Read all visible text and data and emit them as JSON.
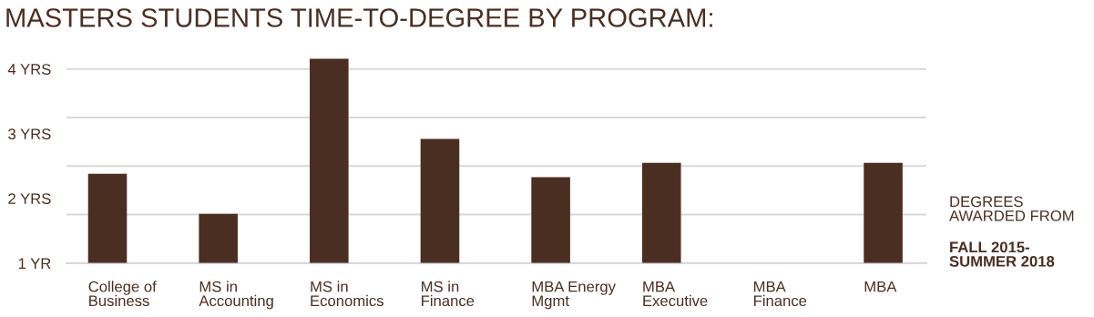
{
  "chart_data": {
    "type": "bar",
    "title": "MASTERS STUDENTS TIME-TO-DEGREE BY PROGRAM:",
    "categories": [
      "College of\nBusiness",
      "MS in\nAccounting",
      "MS in\nEconomics",
      "MS in\nFinance",
      "MBA Energy\nMgmt",
      "MBA\nExecutive",
      "MBA\nFinance",
      "MBA"
    ],
    "values": [
      2.38,
      1.76,
      4.16,
      2.92,
      2.33,
      2.55,
      null,
      2.55
    ],
    "color": "#4a2e22",
    "ylim": [
      1,
      4.2
    ],
    "yticks": [
      {
        "value": 1,
        "label": "1 YR"
      },
      {
        "value": 2,
        "label": "2 YRS"
      },
      {
        "value": 3,
        "label": "3 YRS"
      },
      {
        "value": 4,
        "label": "4 YRS"
      }
    ],
    "ref_lines": [
      {
        "axis": "y",
        "value": 1.75,
        "color": "#d9d9d9"
      },
      {
        "axis": "y",
        "value": 2.5,
        "color": "#d9d9d9"
      },
      {
        "axis": "y",
        "value": 3.25,
        "color": "#d9d9d9"
      },
      {
        "axis": "y",
        "value": 4,
        "color": "#d9d9d9"
      }
    ],
    "annotations": [
      "DEGREES\nAWARDED FROM",
      "FALL 2015-\nSUMMER 2018"
    ],
    "grid": false,
    "legend": false
  }
}
